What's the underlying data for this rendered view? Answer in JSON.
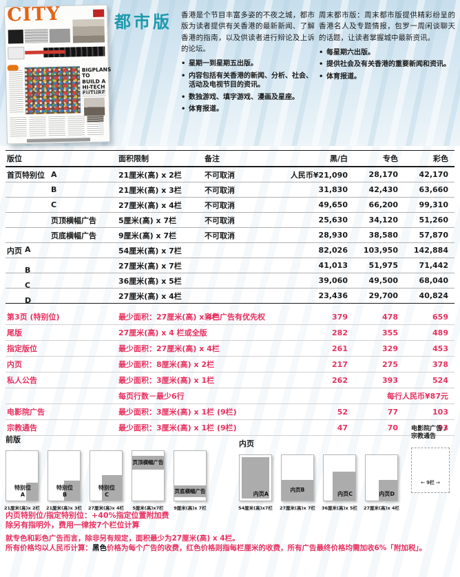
{
  "colors": {
    "accent_red": "#E8305F",
    "title_teal": "#1E9AAD",
    "table_black": "#1A1A1A",
    "diagram_shade_gray": "#ACACAC",
    "masthead_orange": "#E06418",
    "header_band_blue": "#C7DEEC"
  },
  "header": {
    "title": "都市版",
    "thumbnail": {
      "masthead": "CITY",
      "headline": "BIGPLANS TO BUILD A HI-TECH FUTURE"
    },
    "weekday": {
      "intro": "香港是个节目丰富多姿的不夜之城，都市版为读者提供有关香港的最新新闻、了解香港的指南，以及供读者进行辩论及上诉的论坛。",
      "bullets": [
        "星期一到星期五出版。",
        "内容包括有关香港的新闻、分析、社会、活动及电视节目的资讯。",
        "数独游戏、填字游戏、漫画及星座。",
        "体育报道。"
      ]
    },
    "weekend": {
      "intro": "周末都市版：周末都市版提供精彩纷呈的香港名人及专题情报，包罗一周闲谈聊天的话题，让读者掌握城中最新资讯。",
      "bullets": [
        "每星期六出版。",
        "提供社会及有关香港的重要新闻和资讯。",
        "体育报道。"
      ]
    }
  },
  "rate_table": {
    "headers": {
      "position": "版位",
      "size_limit": "面积限制",
      "remark": "备注",
      "bw": "黑/白",
      "spot": "专色",
      "color": "彩色"
    },
    "black_rows": [
      {
        "pos": "首页特别位",
        "sub": "A",
        "size": "21厘米(高) x 2栏",
        "remark": "不可取消",
        "bw": "人民币¥21,090",
        "spot": "28,170",
        "color": "42,170"
      },
      {
        "pos": "",
        "sub": "B",
        "size": "21厘米(高) x 3栏",
        "remark": "不可取消",
        "bw": "31,830",
        "spot": "42,430",
        "color": "63,660"
      },
      {
        "pos": "",
        "sub": "C",
        "size": "27厘米(高) x 4栏",
        "remark": "不可取消",
        "bw": "49,650",
        "spot": "66,200",
        "color": "99,310"
      },
      {
        "pos": "",
        "sub": "页顶横幅广告",
        "size": "5厘米(高) x 7栏",
        "remark": "不可取消",
        "bw": "25,630",
        "spot": "34,120",
        "color": "51,260"
      },
      {
        "pos": "",
        "sub": "页底横幅广告",
        "size": "9厘米(高) x 7栏",
        "remark": "不可取消",
        "bw": "28,930",
        "spot": "38,580",
        "color": "57,870"
      },
      {
        "pos": "内页",
        "pos_sub": "A",
        "sub": "",
        "size": "54厘米(高) x 7栏",
        "remark": "",
        "bw": "82,026",
        "spot": "103,950",
        "color": "142,884"
      },
      {
        "pos": "",
        "pos_sub": "B",
        "sub": "",
        "size": "27厘米(高) x 7栏",
        "remark": "",
        "bw": "41,013",
        "spot": "51,975",
        "color": "71,442"
      },
      {
        "pos": "",
        "pos_sub": "C",
        "sub": "",
        "size": "36厘米(高) x 5栏",
        "remark": "",
        "bw": "39,060",
        "spot": "49,500",
        "color": "68,040"
      },
      {
        "pos": "",
        "pos_sub": "D",
        "sub": "",
        "size": "27厘米(高) x 4栏",
        "remark": "",
        "bw": "23,436",
        "spot": "29,700",
        "color": "40,824"
      }
    ],
    "red_rows": [
      {
        "pos": "第3页 (特别位)",
        "size": "最少面积：27厘米(高) x 4栏",
        "remark": "彩色广告有优先权",
        "bw": "379",
        "spot": "478",
        "color": "659"
      },
      {
        "pos": "尾版",
        "size": "27厘米(高) x 4 栏或全版",
        "remark": "",
        "bw": "282",
        "spot": "355",
        "color": "489"
      },
      {
        "pos": "指定版位",
        "size": "最少面积：27厘米(高) x 4栏",
        "remark": "",
        "bw": "261",
        "spot": "329",
        "color": "453"
      },
      {
        "pos": "内页",
        "size": "最少面积：8厘米(高) x 2栏",
        "remark": "",
        "bw": "217",
        "spot": "275",
        "color": "378"
      },
      {
        "pos": "私人公告",
        "size": "最少面积：3厘米(高) x 1栏",
        "remark": "",
        "bw": "262",
        "spot": "393",
        "color": "524"
      },
      {
        "pos": "",
        "size": "每页行数－最少6行",
        "note_right": "每行人民币¥87元"
      },
      {
        "pos": "电影院广告",
        "size": "最少面积：3厘米(高) x 1栏 (9栏)",
        "remark": "",
        "bw": "52",
        "spot": "77",
        "color": "103"
      },
      {
        "pos": "宗教通告",
        "size": "最少面积：3厘米(高) x 1栏 (9栏)",
        "remark": "",
        "bw": "47",
        "spot": "70",
        "color": "93"
      }
    ]
  },
  "diagrams": {
    "front": {
      "label": "前版",
      "boxes": [
        {
          "name": "特别位",
          "sub": "A",
          "caption": "21厘米(高)x 2栏",
          "shade": "corner-s"
        },
        {
          "name": "特别位",
          "sub": "B",
          "caption": "21厘米(高)x 3栏",
          "shade": "corner-m"
        },
        {
          "name": "特别位",
          "sub": "C",
          "caption": "27厘米(高)x 4栏",
          "shade": "corner-l"
        },
        {
          "name": "页顶横幅广告",
          "caption": "5厘米(高)x7栏",
          "shade": "band-top"
        },
        {
          "name": "页底横幅广告",
          "caption": "9厘米(高)x 7栏",
          "shade": "band-bottom"
        }
      ],
      "notes": [
        "内页特别位/指定特别位：+40%指定位置附加费",
        "除另有指明外，费用一律按7个栏位计算"
      ]
    },
    "inner": {
      "label": "内页",
      "boxes": [
        {
          "name": "内页A",
          "caption": "54厘米(高)x7栏",
          "shade": "full"
        },
        {
          "name": "内页B",
          "caption": "27厘米(高)x 7栏",
          "shade": "band-half"
        },
        {
          "name": "内页C",
          "caption": "36厘米(高)x 5栏",
          "shade": "corner-xl"
        },
        {
          "name": "内页D",
          "caption": "27厘米(高)x 4栏",
          "shade": "corner-m2"
        }
      ]
    },
    "cinema": {
      "label_line1": "电影院广告 /",
      "label_line2": "宗教通告",
      "arrow_left": "←",
      "measure": "9栏",
      "arrow_right": "→"
    }
  },
  "footnotes": {
    "spot_color_note": "就专色和彩色广告而言，除非另有规定，面积最少为27厘米(高) x 4栏。",
    "price_note": {
      "prefix": "所有价格均以人民币计算：",
      "black_word": "黑色",
      "mid": "价格为每个广告的收费，",
      "red_word": "红色",
      "suffix": "价格则指每栏厘米的收费，所有广告最终价格均需加收6%「附加税」。"
    }
  }
}
